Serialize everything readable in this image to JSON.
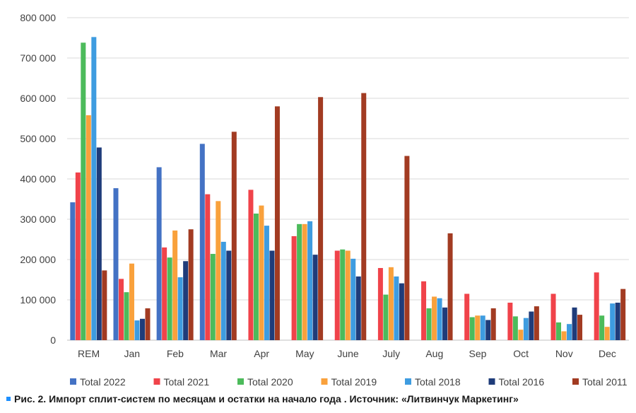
{
  "chart_data": {
    "type": "bar",
    "categories": [
      "REM",
      "Jan",
      "Feb",
      "Mar",
      "Apr",
      "May",
      "June",
      "July",
      "Aug",
      "Sep",
      "Oct",
      "Nov",
      "Dec"
    ],
    "ylim": [
      0,
      800000
    ],
    "yticks": [
      0,
      100000,
      200000,
      300000,
      400000,
      500000,
      600000,
      700000,
      800000
    ],
    "ytick_labels": [
      "0",
      "100 000",
      "200 000",
      "300 000",
      "400 000",
      "500 000",
      "600 000",
      "700 000",
      "800 000"
    ],
    "grid": true,
    "legend_position": "bottom",
    "series": [
      {
        "name": "Total 2022",
        "color": "#4472c4",
        "values": [
          342000,
          377000,
          429000,
          487000,
          null,
          null,
          null,
          null,
          null,
          null,
          null,
          null,
          null
        ]
      },
      {
        "name": "Total 2021",
        "color": "#f0434a",
        "values": [
          416000,
          152000,
          230000,
          362000,
          373000,
          258000,
          222000,
          179000,
          146000,
          115000,
          93000,
          115000,
          168000
        ]
      },
      {
        "name": "Total 2020",
        "color": "#4cbb5b",
        "values": [
          738000,
          119000,
          205000,
          214000,
          314000,
          288000,
          225000,
          113000,
          79000,
          57000,
          59000,
          44000,
          61000
        ]
      },
      {
        "name": "Total 2019",
        "color": "#f9a13c",
        "values": [
          558000,
          190000,
          272000,
          345000,
          334000,
          288000,
          222000,
          181000,
          108000,
          61000,
          26000,
          22000,
          33000
        ]
      },
      {
        "name": "Total 2018",
        "color": "#3e9ce0",
        "values": [
          752000,
          49000,
          156000,
          244000,
          284000,
          295000,
          202000,
          158000,
          104000,
          61000,
          55000,
          40000,
          91000
        ]
      },
      {
        "name": "Total 2016",
        "color": "#1f3c7a",
        "values": [
          478000,
          53000,
          196000,
          222000,
          222000,
          212000,
          158000,
          141000,
          81000,
          50000,
          71000,
          81000,
          93000
        ]
      },
      {
        "name": "Total 2011",
        "color": "#a23b22",
        "values": [
          173000,
          79000,
          275000,
          517000,
          580000,
          603000,
          613000,
          457000,
          265000,
          79000,
          84000,
          63000,
          127000
        ]
      }
    ]
  },
  "caption": "Рис. 2. Импорт сплит-систем по месяцам и остатки на начало года . Источник: «Литвинчук Маркетинг»",
  "caption_marker_color": "#1e90ff"
}
